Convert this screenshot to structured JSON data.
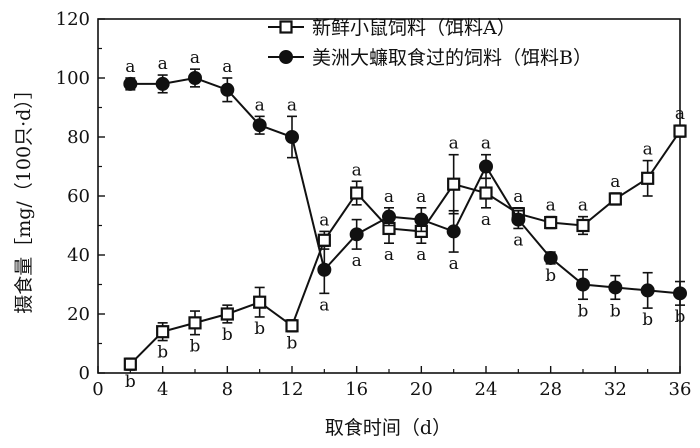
{
  "chart_data": {
    "type": "line",
    "title": "",
    "xlabel": "取食时间（d）",
    "ylabel": "摄食量［mg/（100只·d）］",
    "xlim": [
      0,
      36
    ],
    "ylim": [
      0,
      120
    ],
    "xticks": [
      0,
      4,
      8,
      12,
      16,
      20,
      24,
      28,
      32,
      36
    ],
    "yticks": [
      0,
      20,
      40,
      60,
      80,
      100,
      120
    ],
    "grid": false,
    "legend_position": "top-right",
    "x": [
      2,
      4,
      6,
      8,
      10,
      12,
      14,
      16,
      18,
      20,
      22,
      24,
      26,
      28,
      30,
      32,
      34,
      36
    ],
    "series": [
      {
        "name": "新鲜小鼠饲料（饵料A）",
        "marker": "open-square",
        "values": [
          3,
          14,
          17,
          20,
          24,
          16,
          45,
          61,
          49,
          48,
          64,
          61,
          54,
          51,
          50,
          59,
          66,
          82
        ],
        "errors": [
          2,
          3,
          4,
          3,
          5,
          2,
          3,
          4,
          5,
          4,
          10,
          5,
          2,
          2,
          3,
          2,
          6,
          2
        ],
        "labels": [
          "b",
          "b",
          "b",
          "b",
          "b",
          "b",
          "a",
          "a",
          "a",
          "a",
          "a",
          "a",
          "a",
          "a",
          "a",
          "a",
          "a",
          "a"
        ]
      },
      {
        "name": "美洲大蠊取食过的饲料（饵料B）",
        "marker": "filled-circle",
        "values": [
          98,
          98,
          100,
          96,
          84,
          80,
          35,
          47,
          53,
          52,
          48,
          70,
          52,
          39,
          30,
          29,
          28,
          27
        ],
        "errors": [
          2,
          3,
          3,
          4,
          3,
          7,
          8,
          5,
          3,
          4,
          7,
          4,
          3,
          2,
          5,
          4,
          6,
          4
        ],
        "labels": [
          "a",
          "a",
          "a",
          "a",
          "a",
          "a",
          "a",
          "a",
          "a",
          "a",
          "a",
          "a",
          "a",
          "b",
          "b",
          "b",
          "b",
          "b"
        ]
      }
    ]
  }
}
